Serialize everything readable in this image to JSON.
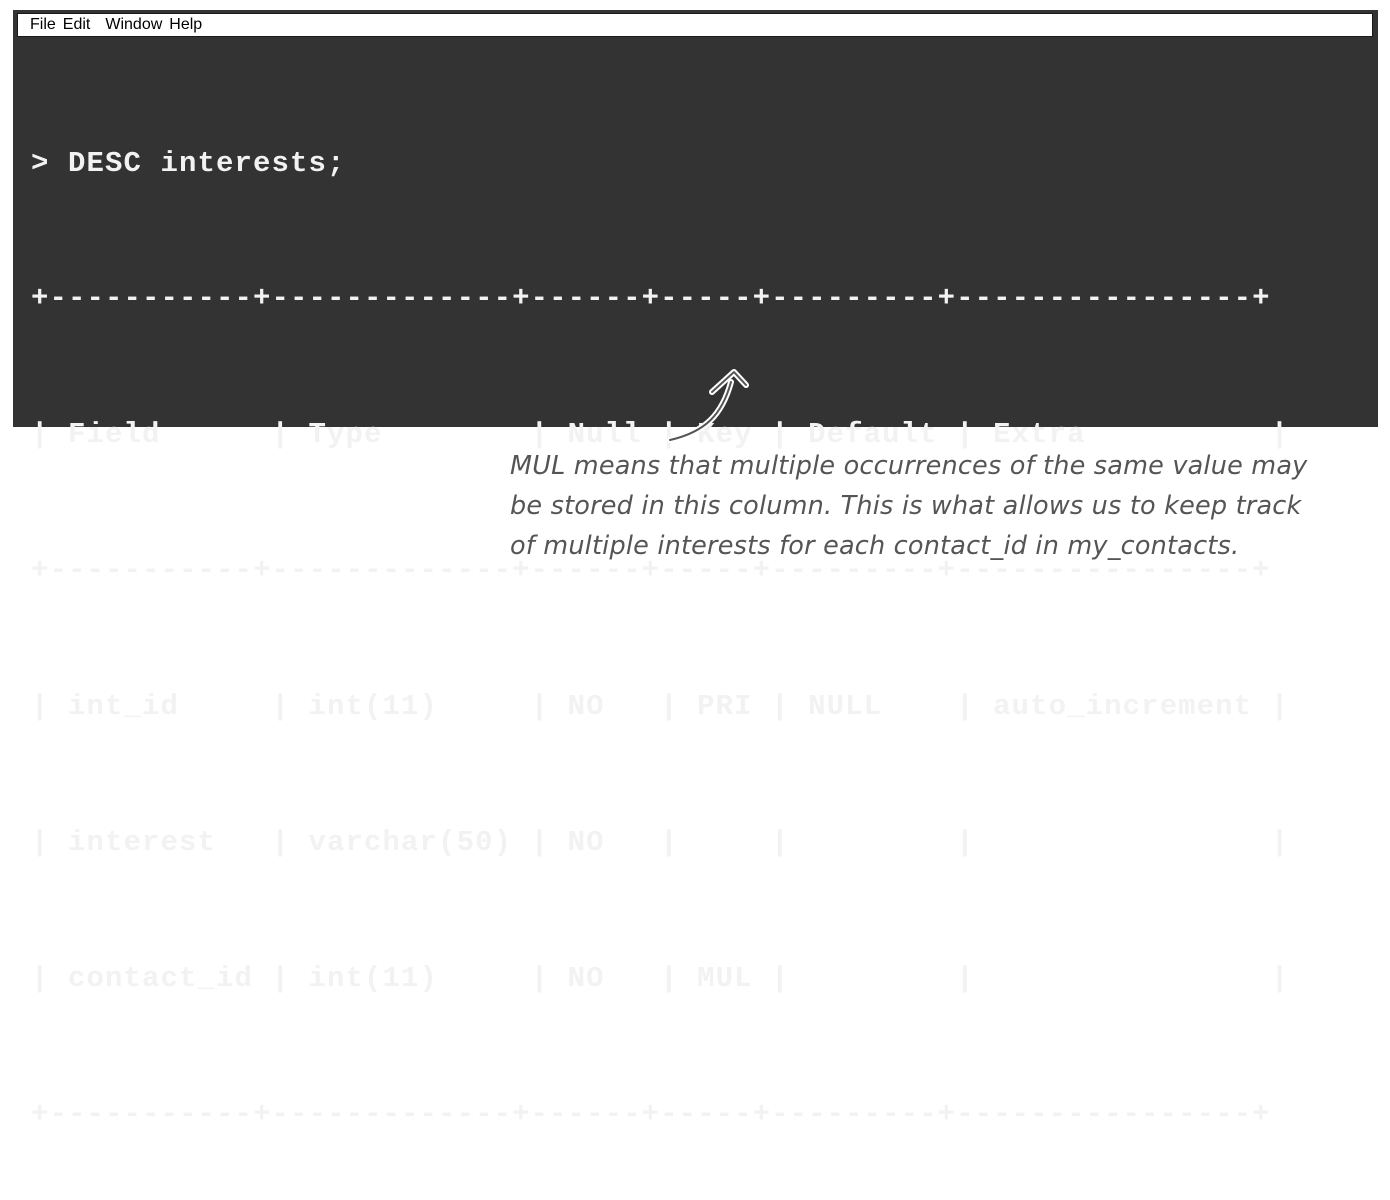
{
  "menu": {
    "items": [
      "File",
      "Edit",
      "Window",
      "Help"
    ]
  },
  "console": {
    "prompt": "> DESC interests;",
    "border": "+-----------+-------------+------+-----+---------+----------------+",
    "header": "| Field      | Type        | Null | Key | Default | Extra          |",
    "rows": [
      "| int_id     | int(11)     | NO   | PRI | NULL    | auto_increment |",
      "| interest   | varchar(50) | NO   |     |         |                |",
      "| contact_id | int(11)     | NO   | MUL |         |                |"
    ]
  },
  "annotation": {
    "lines": [
      "MUL means that multiple occurrences of the same value may",
      "be stored in this column. This is what allows us to keep track",
      "of multiple interests for each contact_id in my_contacts."
    ]
  },
  "colors": {
    "terminal_bg": "#333333",
    "terminal_text": "#f2f2f2",
    "annotation_text": "#555555"
  }
}
